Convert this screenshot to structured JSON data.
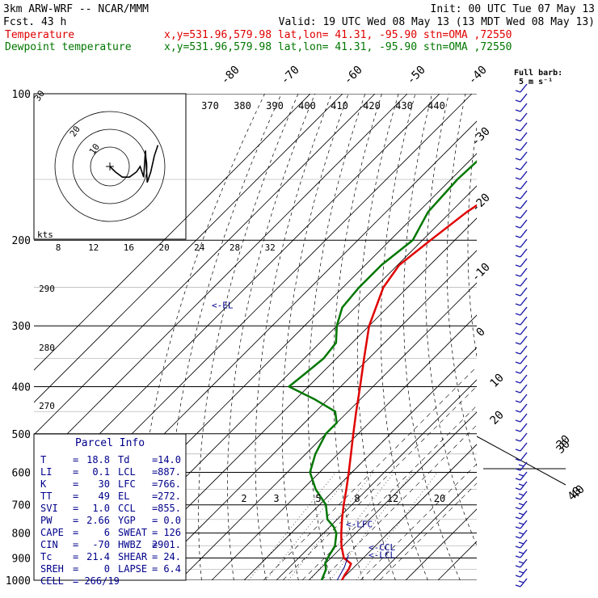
{
  "header": {
    "model": "3km ARW-WRF -- NCAR/MMM",
    "init": "Init: 00 UTC Tue 07 May 13",
    "fcst": "Fcst.    43 h",
    "valid": "Valid: 19 UTC Wed 08 May 13 (13 MDT Wed 08 May 13)",
    "series": [
      {
        "name": "Temperature",
        "info": "x,y=531.96,579.98   lat,lon= 41.31, -95.90   stn=OMA ,72550",
        "color": "#e00000"
      },
      {
        "name": "Dewpoint temperature",
        "info": "x,y=531.96,579.98   lat,lon= 41.31, -95.90   stn=OMA ,72550",
        "color": "#007700"
      }
    ]
  },
  "chart_data": {
    "type": "line",
    "pressure_levels": [
      100,
      200,
      300,
      400,
      500,
      600,
      700,
      800,
      900,
      1000
    ],
    "pressure_labels": [
      "100",
      "200",
      "300",
      "400",
      "500",
      "600",
      "700",
      "800",
      "900",
      "1000"
    ],
    "temp_ticks": [
      "-80",
      "-70",
      "-60",
      "-50",
      "-40",
      "-30",
      "-20",
      "-10",
      "0",
      "10",
      "20",
      "30",
      "40"
    ],
    "theta_labels": [
      "370",
      "380",
      "390",
      "400",
      "410",
      "420",
      "430",
      "440"
    ],
    "theta_lower_labels": [
      "290",
      "280",
      "270"
    ],
    "mixing_ratio_labels": [
      "2",
      "3",
      "5",
      "8",
      "12",
      "20"
    ],
    "hodograph": {
      "ring_labels": [
        "10",
        "20",
        "30"
      ],
      "axis_labels": [
        "8",
        "12",
        "16",
        "20",
        "24",
        "28",
        "32"
      ],
      "units": "kts",
      "hodo_u": [
        0,
        3,
        7,
        11,
        15,
        17,
        19,
        20,
        21,
        23,
        25,
        27
      ],
      "hodo_v": [
        0,
        -1,
        -2,
        -2,
        -1,
        0,
        -2,
        3,
        -3,
        -1,
        2,
        4
      ]
    },
    "series": [
      {
        "name": "Temperature",
        "color": "#e00000",
        "pressure": [
          1000,
          975,
          950,
          925,
          900,
          850,
          800,
          750,
          700,
          650,
          600,
          550,
          500,
          450,
          400,
          350,
          300,
          250,
          225,
          200,
          175,
          150,
          125,
          110,
          100
        ],
        "value": [
          20.3,
          19.5,
          19.0,
          18.0,
          14.0,
          9.5,
          5.5,
          1.5,
          -2.5,
          -6.5,
          -11.0,
          -16.0,
          -21.5,
          -27.5,
          -34.0,
          -41.5,
          -50.0,
          -57.5,
          -59.5,
          -57.5,
          -55.0,
          -50.0,
          -46.0,
          -44.0,
          -43.0
        ]
      },
      {
        "name": "Dewpoint temperature",
        "color": "#007700",
        "pressure": [
          1000,
          975,
          950,
          925,
          900,
          850,
          800,
          775,
          750,
          700,
          650,
          600,
          550,
          500,
          475,
          450,
          425,
          400,
          375,
          350,
          325,
          300,
          275,
          250,
          225,
          200,
          175,
          150,
          125,
          100
        ],
        "value": [
          14.0,
          13.0,
          12.0,
          10.0,
          9.0,
          7.5,
          4.0,
          1.0,
          -3.0,
          -8.0,
          -16.0,
          -23.0,
          -27.0,
          -30.0,
          -30.0,
          -34.0,
          -44.0,
          -56.0,
          -55.0,
          -54.0,
          -55.0,
          -60.0,
          -64.0,
          -65.0,
          -65.0,
          -63.0,
          -67.0,
          -68.0,
          -67.0,
          -69.0
        ]
      }
    ],
    "markers": [
      {
        "label": "<-EL",
        "pressure": 272
      },
      {
        "label": "<-LFC",
        "pressure": 766
      },
      {
        "label": "<-CCL",
        "pressure": 855
      },
      {
        "label": "<-LCL",
        "pressure": 887
      }
    ],
    "wind_panel": {
      "title": "Full barb:",
      "units": "5 m s⁻¹",
      "side_labels": [
        "30",
        "40"
      ]
    },
    "parcel_info": {
      "title": "Parcel Info",
      "rows": [
        {
          "k1": "T",
          "v1": "18.8",
          "k2": "Td",
          "v2": "14.0"
        },
        {
          "k1": "LI",
          "v1": "0.1",
          "k2": "LCL",
          "v2": "887."
        },
        {
          "k1": "K",
          "v1": "30",
          "k2": "LFC",
          "v2": "766."
        },
        {
          "k1": "TT",
          "v1": "49",
          "k2": "EL",
          "v2": "272."
        },
        {
          "k1": "SVI",
          "v1": "1.0",
          "k2": "CCL",
          "v2": "855."
        },
        {
          "k1": "PW",
          "v1": "2.66",
          "k2": "YGP",
          "v2": "0.0"
        },
        {
          "k1": "CAPE",
          "v1": "6",
          "k2": "SWEAT",
          "v2": "126"
        },
        {
          "k1": "CIN",
          "v1": "-70",
          "k2": "HWBZ",
          "v2": "2901."
        },
        {
          "k1": "Tc",
          "v1": "21.4",
          "k2": "SHEAR",
          "v2": "24."
        },
        {
          "k1": "SREH",
          "v1": "0",
          "k2": "LAPSE",
          "v2": "6.4"
        },
        {
          "k1": "CELL",
          "v1": "= 266/19",
          "k2": "",
          "v2": ""
        }
      ]
    }
  }
}
